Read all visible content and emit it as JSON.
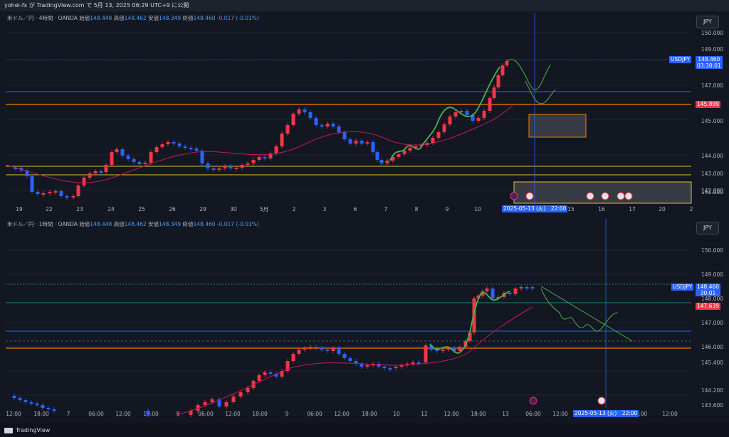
{
  "header": {
    "text": "yohei-fx が TradingView.com で 5月 13, 2025 06:29 UTC+9 に公開"
  },
  "top": {
    "symbol": "米ドル／円 · 4時間 · OANDA",
    "open_label": "始値",
    "open": "148.448",
    "high_label": "高値",
    "high": "148.462",
    "low_label": "安値",
    "low": "148.349",
    "close_label": "終値",
    "close": "148.460",
    "change": "-0.017 (-0.01%)",
    "currency": "JPY",
    "price_ticks": [
      "150.000",
      "149.000",
      "147.000",
      "145.000",
      "144.000",
      "143.000",
      "142.000",
      "141.000"
    ],
    "time_ticks": [
      "19",
      "22",
      "23",
      "24",
      "25",
      "26",
      "29",
      "30",
      "5月",
      "2",
      "3",
      "6",
      "7",
      "8",
      "9",
      "10",
      "15",
      "16",
      "17",
      "20",
      "2"
    ],
    "usdjpy_tag": "USDJPY",
    "usdjpy_price": "148.460",
    "countdown": "03:30:01",
    "level_tag": "145.899",
    "cursor_time": "2025-05-13 (火)　22:00"
  },
  "bottom": {
    "symbol": "米ドル／円 · 1時間 · OANDA",
    "open_label": "始値",
    "open": "148.448",
    "high_label": "高値",
    "high": "148.462",
    "low_label": "安値",
    "low": "148.349",
    "close_label": "終値",
    "close": "148.460",
    "change": "-0.017 (-0.01%)",
    "currency": "JPY",
    "price_ticks": [
      "150.000",
      "149.000",
      "148.000",
      "147.000",
      "146.000",
      "145.400",
      "144.200",
      "143.600"
    ],
    "time_ticks": [
      "12:00",
      "18:00",
      "7",
      "06:00",
      "12:00",
      "18:00",
      "8",
      "06:00",
      "12:00",
      "18:00",
      "9",
      "06:00",
      "12:00",
      "18:00",
      "10",
      "12",
      "12:00",
      "18:00",
      "13",
      "06:00",
      "12:00",
      "18:00",
      ":00",
      "12:00"
    ],
    "usdjpy_tag": "USDJPY",
    "usdjpy_price": "148.460",
    "countdown": "30:01",
    "level_tag": "147.639",
    "cursor_time": "2025-05-13 (火)　22:00"
  },
  "colors": {
    "bg": "#131722",
    "up": "#f23645",
    "down": "#2962ff",
    "ma": "#c2185b",
    "orange": "#f57c00",
    "yellow": "#e6c229",
    "blue_line": "#2962ff",
    "green": "#4caf50",
    "teal": "#26a69a"
  },
  "footer": {
    "brand": "TradingView"
  }
}
